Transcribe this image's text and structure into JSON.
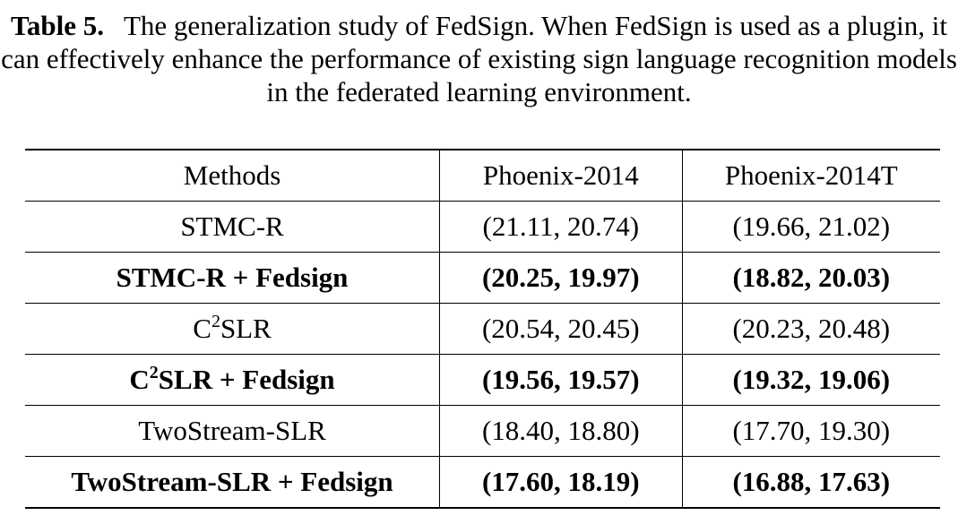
{
  "caption": {
    "label": "Table 5.",
    "text": "The generalization study of FedSign. When FedSign is used as a plugin, it can effectively enhance the performance of existing sign language recognition models in the federated learning environment."
  },
  "table": {
    "headers": [
      "Methods",
      "Phoenix-2014",
      "Phoenix-2014T"
    ],
    "rows": [
      {
        "method": "STMC-R",
        "method_base": "",
        "method_sup": "",
        "method_rest": "",
        "phoenix2014": "(21.11, 20.74)",
        "phoenix2014t": "(19.66, 21.02)",
        "bold": false
      },
      {
        "method": "STMC-R + Fedsign",
        "method_base": "",
        "method_sup": "",
        "method_rest": "",
        "phoenix2014": "(20.25, 19.97)",
        "phoenix2014t": "(18.82, 20.03)",
        "bold": true
      },
      {
        "method": "",
        "method_base": "C",
        "method_sup": "2",
        "method_rest": "SLR",
        "phoenix2014": "(20.54, 20.45)",
        "phoenix2014t": "(20.23, 20.48)",
        "bold": false
      },
      {
        "method": "",
        "method_base": "C",
        "method_sup": "2",
        "method_rest": "SLR + Fedsign",
        "phoenix2014": "(19.56, 19.57)",
        "phoenix2014t": "(19.32, 19.06)",
        "bold": true
      },
      {
        "method": "TwoStream-SLR",
        "method_base": "",
        "method_sup": "",
        "method_rest": "",
        "phoenix2014": "(18.40, 18.80)",
        "phoenix2014t": "(17.70, 19.30)",
        "bold": false
      },
      {
        "method": "TwoStream-SLR + Fedsign",
        "method_base": "",
        "method_sup": "",
        "method_rest": "",
        "phoenix2014": "(17.60, 18.19)",
        "phoenix2014t": "(16.88, 17.63)",
        "bold": true
      }
    ]
  }
}
